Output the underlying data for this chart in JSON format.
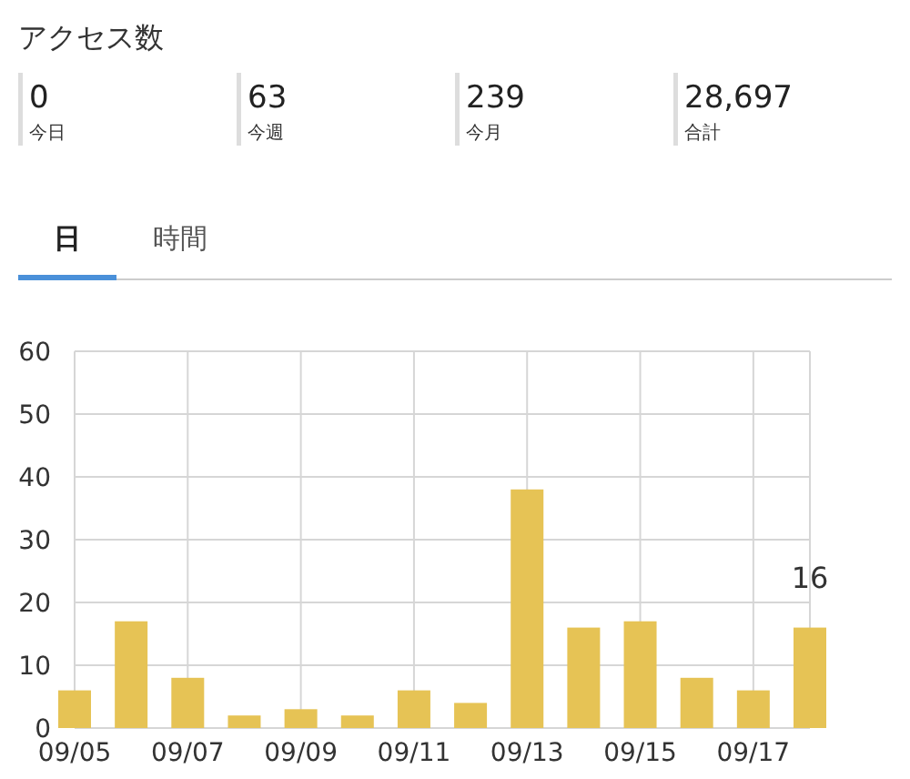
{
  "chart_data": {
    "type": "bar",
    "title": "アクセス数",
    "annotations": [
      "0",
      "今日",
      "63",
      "今週",
      "239",
      "今月",
      "28,697",
      "合計",
      "日",
      "時間"
    ],
    "categories": [
      "09/05",
      null,
      "09/07",
      null,
      "09/09",
      null,
      "09/11",
      null,
      "09/13",
      null,
      "09/15",
      null,
      "09/17",
      null
    ],
    "values": [
      6,
      17,
      8,
      2,
      3,
      2,
      6,
      4,
      38,
      16,
      17,
      8,
      6,
      16
    ],
    "value_labels": [
      null,
      null,
      null,
      null,
      null,
      null,
      null,
      null,
      null,
      null,
      null,
      null,
      null,
      "16"
    ],
    "color": "#e6c355",
    "ylim": [
      0,
      60
    ],
    "yticks": [
      0,
      10,
      20,
      30,
      40,
      50,
      60
    ],
    "grid": true
  }
}
